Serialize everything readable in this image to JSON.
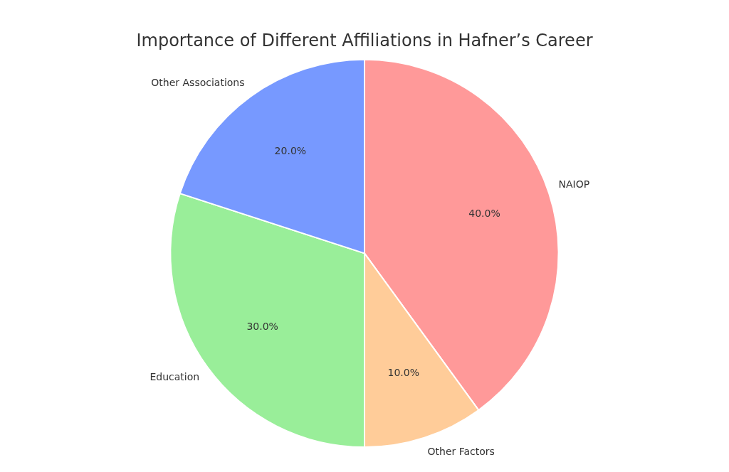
{
  "chart_data": {
    "type": "pie",
    "title": "Importance of Different Affiliations in Hafner’s Career",
    "categories": [
      "NAIOP",
      "Other Factors",
      "Education",
      "Other Associations"
    ],
    "values": [
      40.0,
      10.0,
      30.0,
      20.0
    ],
    "value_labels": [
      "40.0%",
      "10.0%",
      "30.0%",
      "20.0%"
    ],
    "colors": [
      "#FF9999",
      "#FFCC99",
      "#99EE99",
      "#7799FF"
    ],
    "data_labels": true
  }
}
